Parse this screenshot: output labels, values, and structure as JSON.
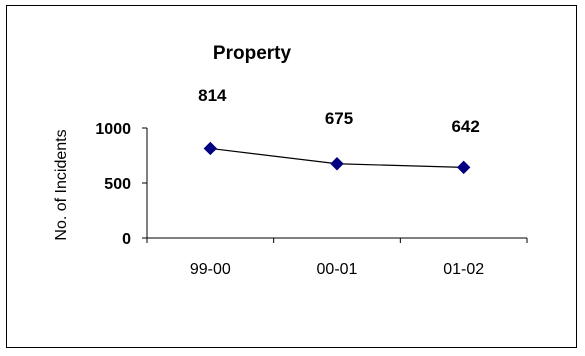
{
  "chart_data": {
    "type": "line",
    "title": "Property",
    "xlabel": "",
    "ylabel": "No. of Incidents",
    "categories": [
      "99-00",
      "00-01",
      "01-02"
    ],
    "series": [
      {
        "values": [
          814,
          675,
          642
        ],
        "color": "#000080"
      }
    ],
    "data_labels": [
      "814",
      "675",
      "642"
    ],
    "y_ticks": [
      0,
      500,
      1000
    ],
    "y_tick_labels": [
      "0",
      "500",
      "1000"
    ],
    "ylim": [
      0,
      1000
    ],
    "grid": false,
    "legend": "none",
    "line_color": "#000000"
  }
}
